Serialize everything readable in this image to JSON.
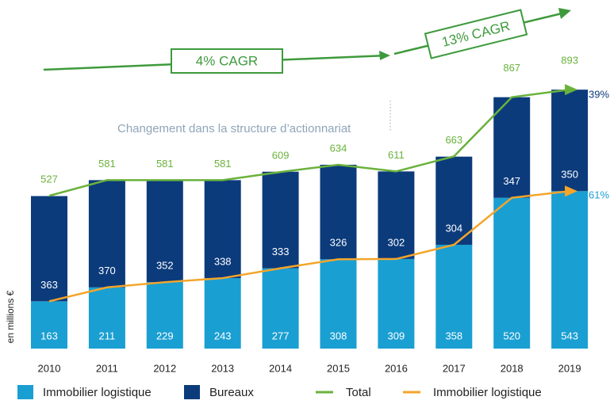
{
  "chart_data": {
    "type": "bar",
    "stacked": true,
    "categories": [
      "2010",
      "2011",
      "2012",
      "2013",
      "2014",
      "2015",
      "2016",
      "2017",
      "2018",
      "2019"
    ],
    "series": [
      {
        "name": "Immobilier logistique",
        "type": "bar",
        "color": "#1a9fd2",
        "values": [
          163,
          211,
          229,
          243,
          277,
          308,
          309,
          358,
          520,
          543
        ]
      },
      {
        "name": "Bureaux",
        "type": "bar",
        "color": "#0c3b7c",
        "values": [
          363,
          370,
          352,
          338,
          333,
          326,
          302,
          304,
          347,
          350
        ]
      },
      {
        "name": "Total",
        "type": "line",
        "color": "#6ab23c",
        "values": [
          527,
          581,
          581,
          581,
          609,
          634,
          611,
          663,
          867,
          893
        ]
      },
      {
        "name": "Immobilier logistique",
        "type": "line",
        "color": "#f4a52a",
        "values": [
          163,
          211,
          229,
          243,
          277,
          308,
          309,
          358,
          520,
          543
        ]
      }
    ],
    "ylabel": "en millions €",
    "annotations": {
      "cagr_1": "4% CAGR",
      "cagr_2": "13% CAGR",
      "note": "Changement dans la structure d’actionnariat",
      "share_bureaux": "39%",
      "share_logistique": "61%"
    }
  }
}
